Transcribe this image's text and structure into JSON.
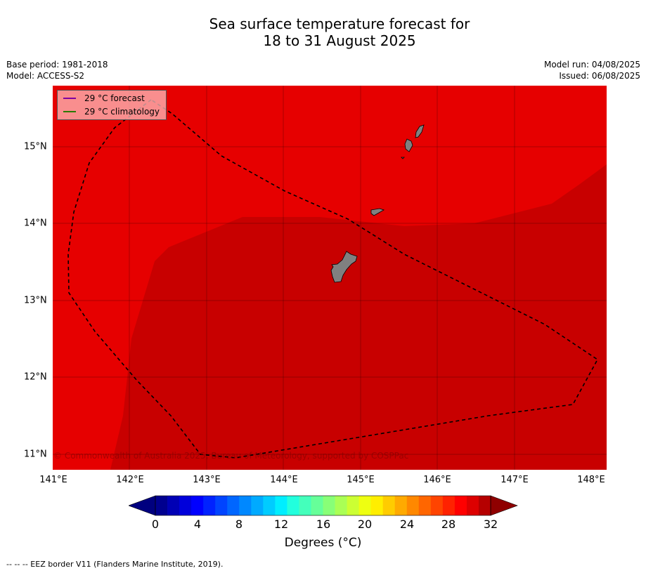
{
  "title_line1": "Sea surface temperature forecast for",
  "title_line2": "18 to 31 August 2025",
  "meta_left": [
    "Base period: 1981-2018",
    "Model: ACCESS-S2"
  ],
  "meta_right": [
    "Model run: 04/08/2025",
    "Issued: 06/08/2025"
  ],
  "legend": [
    {
      "label": "29 °C  forecast",
      "color": "#8000a0"
    },
    {
      "label": "29 °C  climatology",
      "color": "#2a7a00"
    }
  ],
  "x_ticks": [
    "141°E",
    "142°E",
    "143°E",
    "144°E",
    "145°E",
    "146°E",
    "147°E",
    "148°E"
  ],
  "y_ticks": [
    "15°N",
    "14°N",
    "13°N",
    "12°N",
    "11°N"
  ],
  "copyright": "© Commonwealth of Australia 2025, Bureau of Meteorology, supported by COSPPac",
  "colorbar": {
    "ticks": [
      "0",
      "4",
      "8",
      "12",
      "16",
      "20",
      "24",
      "28",
      "32"
    ],
    "label": "Degrees (°C)",
    "colors": [
      "#00008f",
      "#0000b5",
      "#0000db",
      "#0000ff",
      "#0022ff",
      "#0044ff",
      "#0066ff",
      "#0088ff",
      "#00aaff",
      "#00ccff",
      "#00eeff",
      "#22ffdd",
      "#44ffbb",
      "#66ff99",
      "#88ff77",
      "#aaff55",
      "#ccff33",
      "#eeff11",
      "#ffee00",
      "#ffcc00",
      "#ffaa00",
      "#ff8800",
      "#ff6600",
      "#ff4400",
      "#ff2200",
      "#ff0000",
      "#dd0000",
      "#b50000"
    ],
    "under_color": "#00007f",
    "over_color": "#8f0000"
  },
  "footnote": "--  --  -- EEZ border V11 (Flanders Marine Institute, 2019).",
  "map": {
    "base_color": "#e60000",
    "warm_color": "#c80000",
    "land_color": "#808080",
    "islands": [
      "Guam",
      "Rota",
      "Tinian",
      "Saipan"
    ]
  }
}
